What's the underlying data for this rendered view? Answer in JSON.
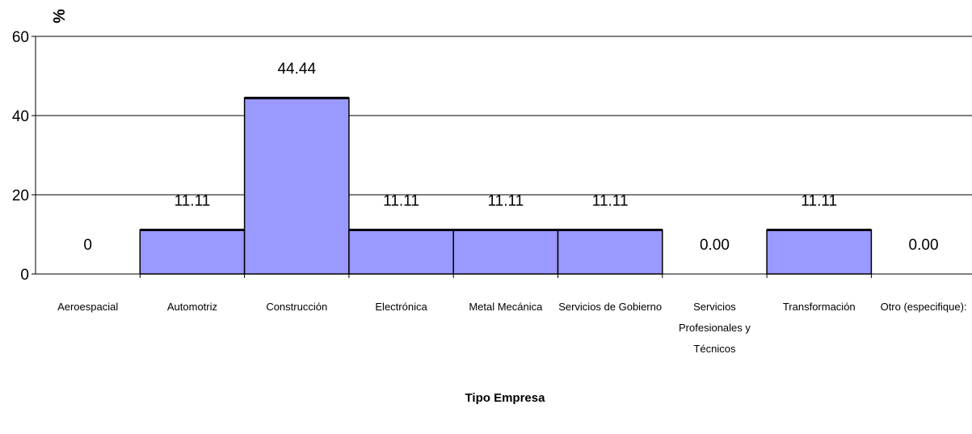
{
  "chart_data": {
    "type": "bar",
    "title": "",
    "xlabel": "Tipo Empresa",
    "ylabel": "%",
    "ylim": [
      0,
      60
    ],
    "yticks": [
      0,
      20,
      40,
      60
    ],
    "grid": true,
    "bar_color": "#9999ff",
    "categories": [
      [
        "Aeroespacial"
      ],
      [
        "Automotriz"
      ],
      [
        "Construcción"
      ],
      [
        "Electrónica"
      ],
      [
        "Metal Mecánica"
      ],
      [
        "Servicios de Gobierno"
      ],
      [
        "Servicios",
        "Profesionales y",
        "Técnicos"
      ],
      [
        "Transformación"
      ],
      [
        "Otro (especifique):"
      ]
    ],
    "values": [
      0,
      11.11,
      44.44,
      11.11,
      11.11,
      11.11,
      0,
      11.11,
      0
    ],
    "data_labels": [
      "0",
      "11.11",
      "44.44",
      "11.11",
      "11.11",
      "11.11",
      "0.00",
      "11.11",
      "0.00"
    ]
  }
}
